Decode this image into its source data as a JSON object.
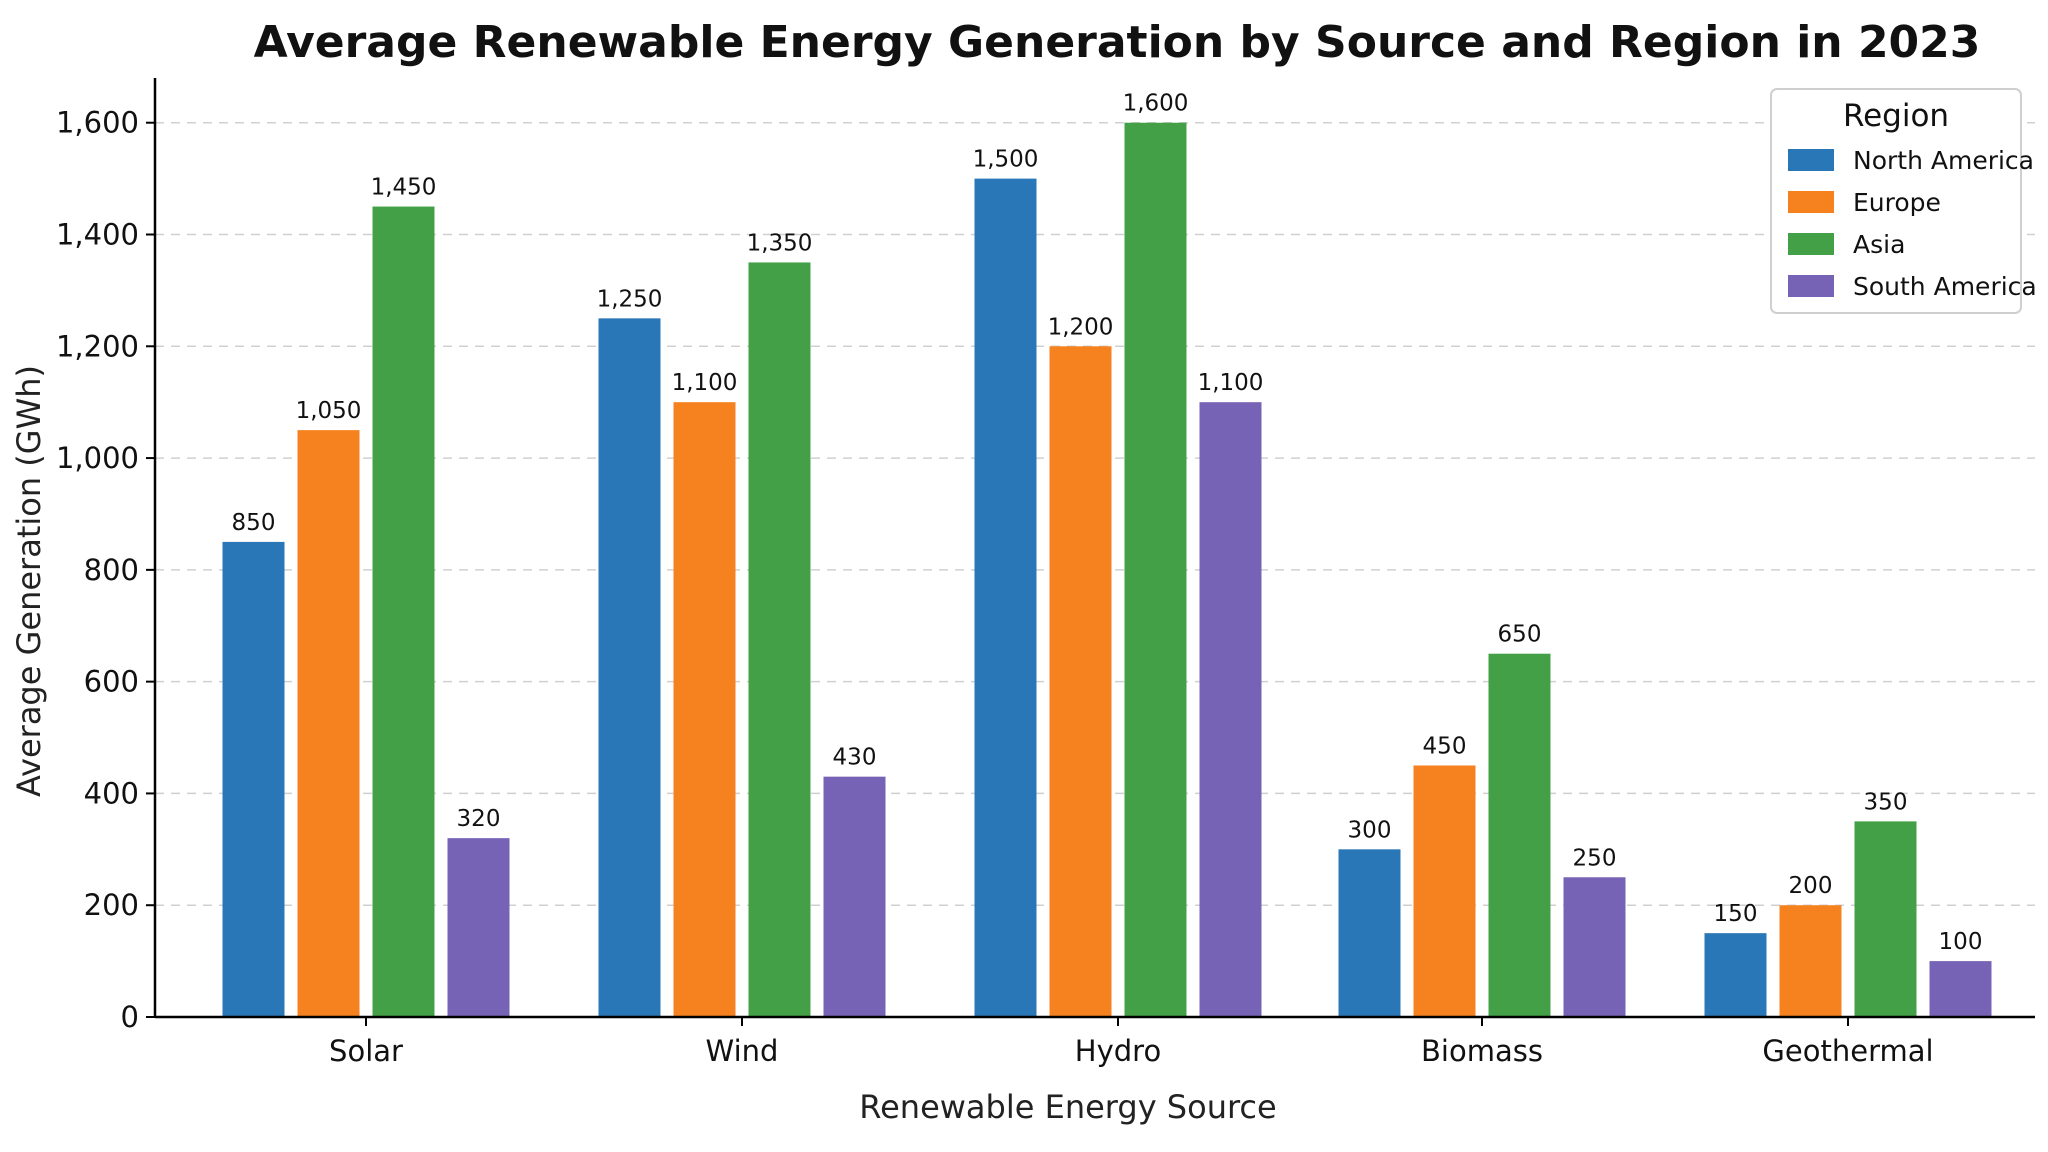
{
  "chart_data": {
    "type": "bar",
    "title": "Average Renewable Energy Generation by Source and Region in 2023",
    "xlabel": "Renewable Energy Source",
    "ylabel": "Average Generation (GWh)",
    "categories": [
      "Solar",
      "Wind",
      "Hydro",
      "Biomass",
      "Geothermal"
    ],
    "ylim": [
      0,
      1680
    ],
    "yticks": [
      0,
      200,
      400,
      600,
      800,
      1000,
      1200,
      1400,
      1600
    ],
    "ytick_labels": [
      "0",
      "200",
      "400",
      "600",
      "800",
      "1,000",
      "1,200",
      "1,400",
      "1,600"
    ],
    "grid": "y, dashed",
    "legend": {
      "title": "Region",
      "placement": "top-right"
    },
    "series": [
      {
        "name": "North America",
        "color": "#2a77b8",
        "values": [
          850,
          1250,
          1500,
          300,
          150
        ],
        "labels": [
          "850",
          "1,250",
          "1,500",
          "300",
          "150"
        ]
      },
      {
        "name": "Europe",
        "color": "#f5821f",
        "values": [
          1050,
          1100,
          1200,
          450,
          200
        ],
        "labels": [
          "1,050",
          "1,100",
          "1,200",
          "450",
          "200"
        ]
      },
      {
        "name": "Asia",
        "color": "#43a047",
        "values": [
          1450,
          1350,
          1600,
          650,
          350
        ],
        "labels": [
          "1,450",
          "1,350",
          "1,600",
          "650",
          "350"
        ]
      },
      {
        "name": "South America",
        "color": "#7763b5",
        "values": [
          320,
          430,
          1100,
          250,
          100
        ],
        "labels": [
          "320",
          "430",
          "1,100",
          "250",
          "100"
        ]
      }
    ]
  }
}
